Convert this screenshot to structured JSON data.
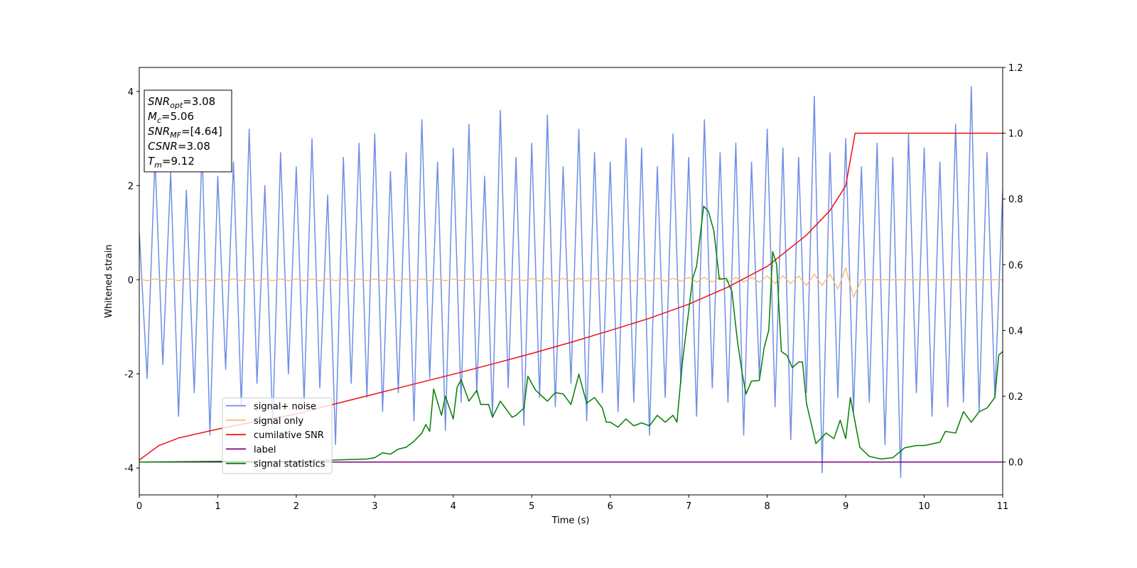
{
  "chart_data": {
    "type": "line",
    "xlabel": "Time (s)",
    "ylabel": "Whitened strain",
    "xlim": [
      0,
      11
    ],
    "ylim": [
      -4.57,
      4.51
    ],
    "y2lim": [
      -0.1,
      1.2
    ],
    "xticks": [
      0,
      1,
      2,
      3,
      4,
      5,
      6,
      7,
      8,
      9,
      10,
      11
    ],
    "yticks": [
      -4,
      -2,
      0,
      2,
      4
    ],
    "y2ticks": [
      {
        "value": 0,
        "label": "0.0"
      },
      0.2,
      0.4,
      0.6,
      0.8,
      {
        "value": 1,
        "label": "1.0"
      },
      1.2
    ],
    "legend_loc": "lower left",
    "annotations": [
      {
        "main": "SNR",
        "sub": "opt",
        "rest": "=3.08"
      },
      {
        "main": "M",
        "sub": "c",
        "rest": "=5.06"
      },
      {
        "main": "SNR",
        "sub": "MF",
        "rest": "=[4.64]"
      },
      {
        "main": "CSNR",
        "rest": "=3.08"
      },
      {
        "main": "T",
        "sub": "m",
        "rest": "=9.12"
      }
    ],
    "x": [
      0,
      0.1,
      0.2,
      0.3,
      0.4,
      0.5,
      0.6,
      0.7,
      0.8,
      0.9,
      1,
      1.1,
      1.2,
      1.3,
      1.4,
      1.5,
      1.6,
      1.7,
      1.8,
      1.9,
      2,
      2.1,
      2.2,
      2.3,
      2.4,
      2.5,
      2.6,
      2.7,
      2.8,
      2.9,
      3,
      3.1,
      3.2,
      3.3,
      3.4,
      3.5,
      3.6,
      3.7,
      3.8,
      3.9,
      4,
      4.1,
      4.2,
      4.3,
      4.4,
      4.5,
      4.6,
      4.7,
      4.8,
      4.9,
      5,
      5.1,
      5.2,
      5.3,
      5.4,
      5.5,
      5.6,
      5.7,
      5.8,
      5.9,
      6,
      6.1,
      6.2,
      6.3,
      6.4,
      6.5,
      6.6,
      6.7,
      6.8,
      6.9,
      7,
      7.1,
      7.2,
      7.3,
      7.4,
      7.5,
      7.6,
      7.7,
      7.8,
      7.9,
      8,
      8.1,
      8.2,
      8.3,
      8.4,
      8.5,
      8.6,
      8.7,
      8.8,
      8.9,
      9,
      9.1,
      9.2,
      9.3,
      9.4,
      9.5,
      9.6,
      9.7,
      9.8,
      9.9,
      10,
      10.1,
      10.2,
      10.3,
      10.4,
      10.5,
      10.6,
      10.7,
      10.8,
      10.9,
      11
    ],
    "series": [
      {
        "name": "signal+ noise",
        "color": "#6f8ee6",
        "values": [
          1.0,
          -2.1,
          2.6,
          -1.8,
          2.3,
          -2.9,
          1.9,
          -2.4,
          2.8,
          -3.3,
          2.2,
          -1.9,
          2.5,
          -2.7,
          3.2,
          -2.2,
          2.0,
          -3.1,
          2.7,
          -2.0,
          2.4,
          -2.6,
          3.0,
          -2.3,
          1.8,
          -3.5,
          2.6,
          -2.2,
          2.9,
          -2.5,
          3.1,
          -2.8,
          2.3,
          -2.4,
          2.7,
          -3.0,
          3.4,
          -2.1,
          2.5,
          -3.2,
          2.8,
          -2.6,
          3.3,
          -2.4,
          2.2,
          -2.9,
          3.6,
          -2.3,
          2.6,
          -3.1,
          2.9,
          -2.5,
          3.5,
          -2.7,
          2.4,
          -2.2,
          3.2,
          -3.0,
          2.7,
          -2.4,
          2.5,
          -2.8,
          3.0,
          -2.6,
          2.8,
          -3.3,
          2.4,
          -2.5,
          3.1,
          -2.2,
          2.6,
          -2.9,
          3.4,
          -2.3,
          2.7,
          -2.6,
          2.9,
          -3.3,
          2.5,
          -2.1,
          3.2,
          -2.7,
          2.8,
          -3.4,
          2.6,
          -2.4,
          3.9,
          -4.1,
          2.7,
          -2.5,
          3.0,
          -2.8,
          2.4,
          -2.6,
          2.9,
          -3.5,
          2.6,
          -4.2,
          3.1,
          -2.4,
          2.8,
          -2.9,
          2.5,
          -2.7,
          3.3,
          -2.6,
          4.1,
          -2.8,
          2.7,
          -2.5,
          1.9
        ]
      },
      {
        "name": "signal only",
        "color": "#f5be7a",
        "values": [
          0.02,
          -0.02,
          0.02,
          -0.02,
          0.02,
          -0.02,
          0.02,
          -0.02,
          0.02,
          -0.02,
          0.02,
          -0.02,
          0.02,
          -0.02,
          0.02,
          -0.02,
          0.02,
          -0.02,
          0.02,
          -0.02,
          0.02,
          -0.02,
          0.02,
          -0.02,
          0.02,
          -0.02,
          0.02,
          -0.02,
          0.02,
          -0.02,
          0.02,
          -0.02,
          0.02,
          -0.02,
          0.02,
          -0.02,
          0.02,
          -0.02,
          0.02,
          -0.02,
          0.02,
          -0.02,
          0.02,
          -0.02,
          0.02,
          -0.02,
          0.02,
          -0.02,
          0.02,
          -0.02,
          0.03,
          -0.03,
          0.03,
          -0.03,
          0.03,
          -0.03,
          0.03,
          -0.03,
          0.03,
          -0.03,
          0.03,
          -0.03,
          0.03,
          -0.03,
          0.03,
          -0.03,
          0.03,
          -0.03,
          0.03,
          -0.03,
          0.05,
          -0.05,
          0.05,
          -0.05,
          0.05,
          -0.05,
          0.05,
          -0.05,
          0.05,
          -0.05,
          0.08,
          -0.08,
          0.08,
          -0.08,
          0.08,
          -0.12,
          0.12,
          -0.12,
          0.12,
          -0.2,
          0.25,
          -0.37,
          0,
          0,
          0,
          0,
          0,
          0,
          0,
          0,
          0,
          0,
          0,
          0,
          0,
          0,
          0,
          0,
          0,
          0,
          0
        ]
      },
      {
        "name": "cumilative SNR",
        "color": "#ee1111",
        "axis": "y2",
        "x": [
          0,
          0.25,
          0.5,
          1,
          1.5,
          2,
          2.5,
          3,
          3.5,
          4,
          4.5,
          5,
          5.5,
          6,
          6.5,
          7,
          7.5,
          8,
          8.5,
          8.8,
          9,
          9.12,
          11
        ],
        "values": [
          0.006,
          0.05,
          0.073,
          0.1,
          0.124,
          0.146,
          0.177,
          0.207,
          0.237,
          0.267,
          0.298,
          0.33,
          0.364,
          0.4,
          0.437,
          0.48,
          0.532,
          0.595,
          0.69,
          0.765,
          0.84,
          1.0,
          1.0
        ]
      },
      {
        "name": "label",
        "color": "#800080",
        "axis": "y2",
        "x": [
          0,
          11
        ],
        "values": [
          0,
          0
        ]
      },
      {
        "name": "signal statistics",
        "color": "#007f00",
        "axis": "y2",
        "x": [
          0,
          1,
          2,
          2.5,
          2.9,
          3,
          3.1,
          3.2,
          3.3,
          3.4,
          3.5,
          3.6,
          3.65,
          3.7,
          3.75,
          3.85,
          3.9,
          4,
          4.05,
          4.1,
          4.2,
          4.3,
          4.35,
          4.45,
          4.5,
          4.6,
          4.75,
          4.8,
          4.9,
          4.95,
          5.05,
          5.1,
          5.2,
          5.3,
          5.4,
          5.5,
          5.6,
          5.7,
          5.8,
          5.9,
          5.95,
          6,
          6.1,
          6.2,
          6.3,
          6.4,
          6.5,
          6.6,
          6.7,
          6.8,
          6.85,
          6.92,
          7.05,
          7.1,
          7.19,
          7.25,
          7.32,
          7.39,
          7.48,
          7.55,
          7.62,
          7.68,
          7.73,
          7.8,
          7.9,
          7.96,
          8.02,
          8.07,
          8.12,
          8.18,
          8.25,
          8.32,
          8.4,
          8.45,
          8.5,
          8.62,
          8.75,
          8.85,
          8.93,
          9,
          9.06,
          9.18,
          9.3,
          9.45,
          9.6,
          9.75,
          9.9,
          10,
          10.2,
          10.27,
          10.4,
          10.5,
          10.6,
          10.7,
          10.8,
          10.9,
          10.95,
          11
        ],
        "values": [
          0,
          0.002,
          0.002,
          0.006,
          0.009,
          0.013,
          0.028,
          0.024,
          0.039,
          0.045,
          0.063,
          0.088,
          0.114,
          0.093,
          0.222,
          0.142,
          0.2,
          0.131,
          0.228,
          0.25,
          0.185,
          0.218,
          0.175,
          0.175,
          0.136,
          0.185,
          0.136,
          0.142,
          0.164,
          0.261,
          0.218,
          0.207,
          0.185,
          0.211,
          0.207,
          0.175,
          0.267,
          0.179,
          0.196,
          0.164,
          0.121,
          0.121,
          0.106,
          0.131,
          0.11,
          0.119,
          0.11,
          0.142,
          0.121,
          0.142,
          0.121,
          0.304,
          0.558,
          0.595,
          0.778,
          0.763,
          0.703,
          0.556,
          0.558,
          0.519,
          0.369,
          0.272,
          0.207,
          0.246,
          0.248,
          0.347,
          0.401,
          0.64,
          0.601,
          0.336,
          0.325,
          0.287,
          0.304,
          0.304,
          0.179,
          0.056,
          0.088,
          0.071,
          0.127,
          0.071,
          0.196,
          0.045,
          0.017,
          0.009,
          0.013,
          0.043,
          0.05,
          0.05,
          0.06,
          0.093,
          0.088,
          0.153,
          0.121,
          0.153,
          0.164,
          0.196,
          0.325,
          0.336
        ]
      }
    ]
  }
}
